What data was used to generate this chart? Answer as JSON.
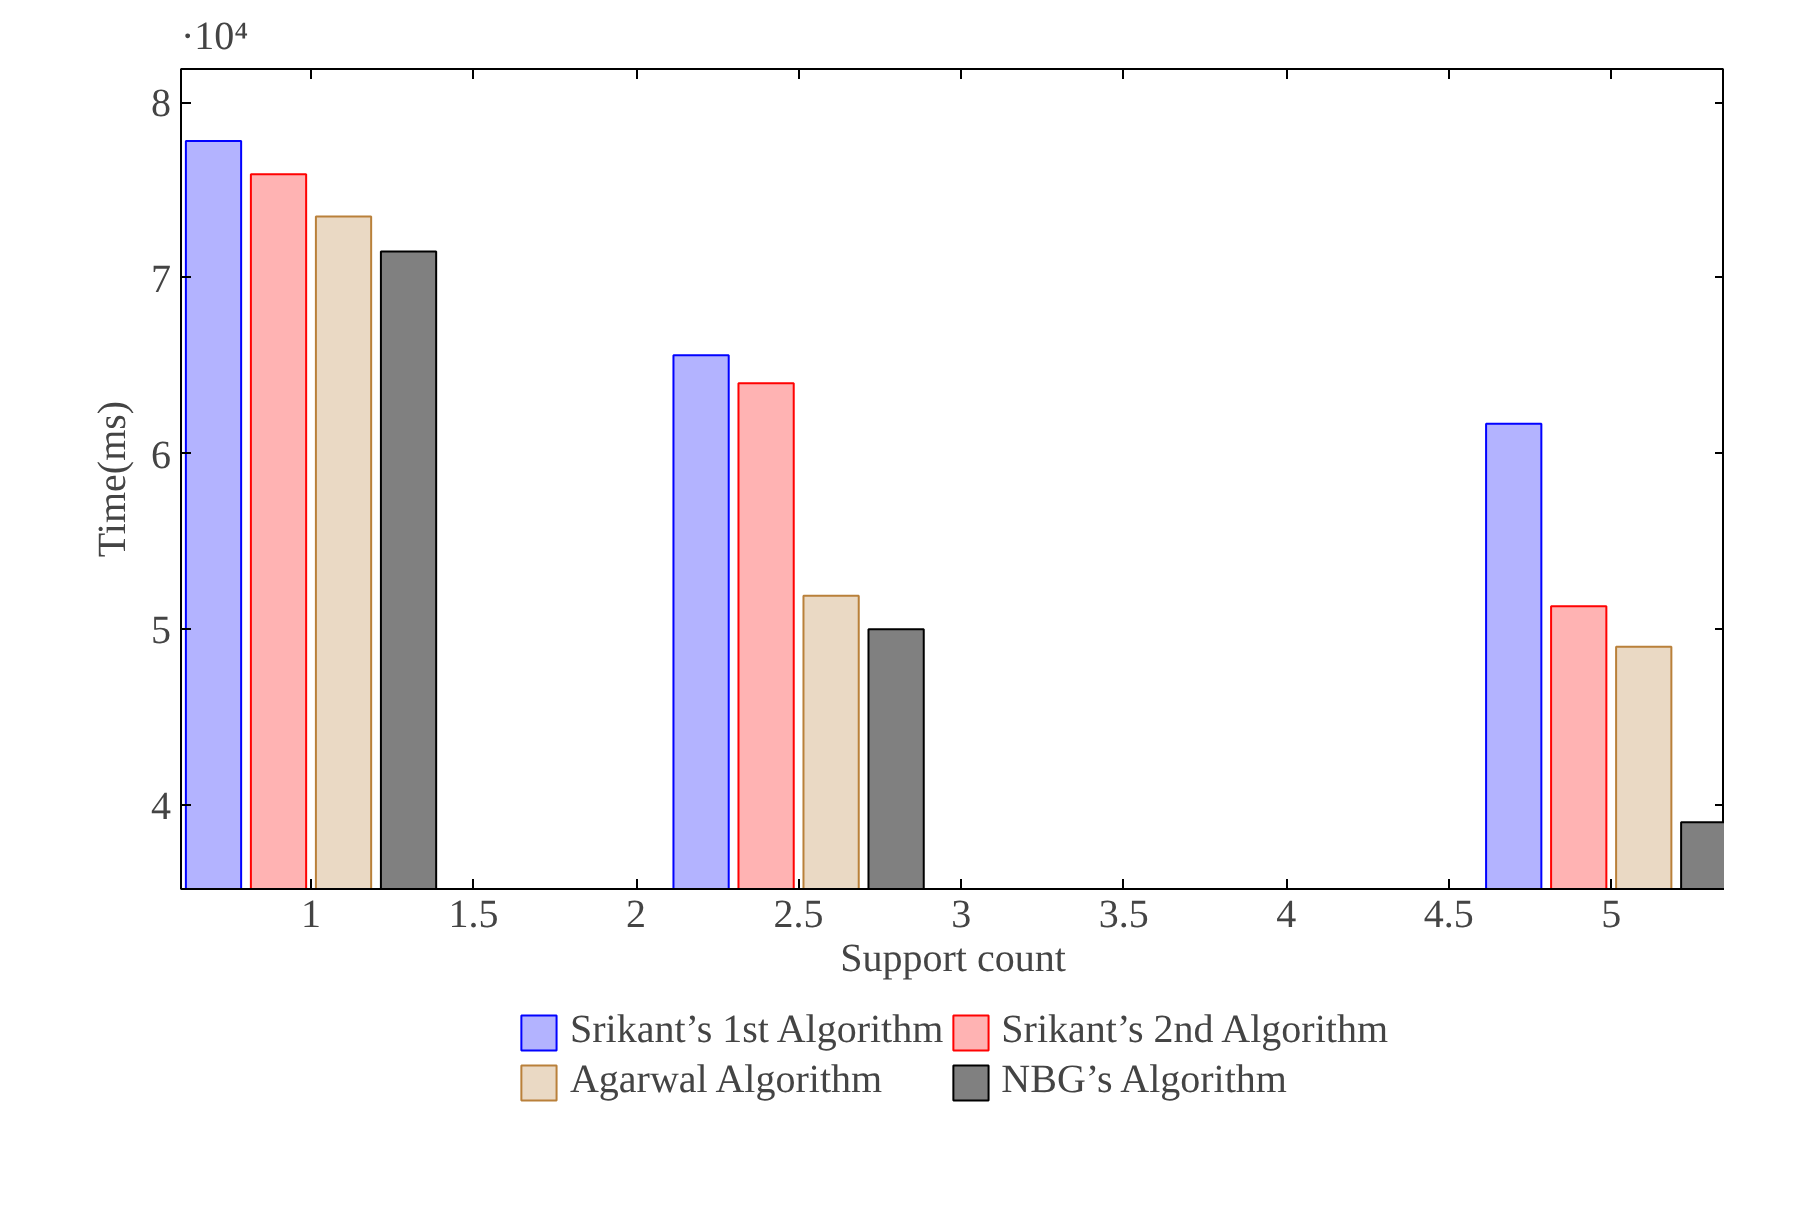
{
  "chart_data": {
    "type": "bar",
    "xlabel": "Support count",
    "ylabel": "Time(ms)",
    "annotations": [
      "·10⁴"
    ],
    "series": [
      {
        "name": "Srikant’s 1st Algorithm",
        "color": "#b3b3ff",
        "x": [
          0.7,
          2.2,
          4.7
        ],
        "values": [
          7.78,
          6.56,
          6.17
        ]
      },
      {
        "name": "Srikant’s 2nd Algorithm",
        "color": "#ffb3b3",
        "x": [
          0.9,
          2.4,
          4.9
        ],
        "values": [
          7.59,
          6.4,
          5.13
        ]
      },
      {
        "name": "Agarwal Algorithm",
        "color": "#ead9c4",
        "x": [
          1.1,
          2.6,
          5.1
        ],
        "values": [
          7.35,
          5.19,
          4.9
        ]
      },
      {
        "name": "NBG’s Algorithm",
        "color": "#808080",
        "x": [
          1.3,
          2.8,
          5.3
        ],
        "values": [
          7.15,
          5.0,
          3.9
        ]
      }
    ],
    "xlim": [
      0.6,
      5.35
    ],
    "ylim": [
      3.52,
      8.19
    ],
    "xticks": [
      1,
      1.5,
      2,
      2.5,
      3,
      3.5,
      4,
      4.5,
      5
    ],
    "yticks": [
      4,
      5,
      6,
      7,
      8
    ],
    "grid": false,
    "legend": "bottom"
  }
}
